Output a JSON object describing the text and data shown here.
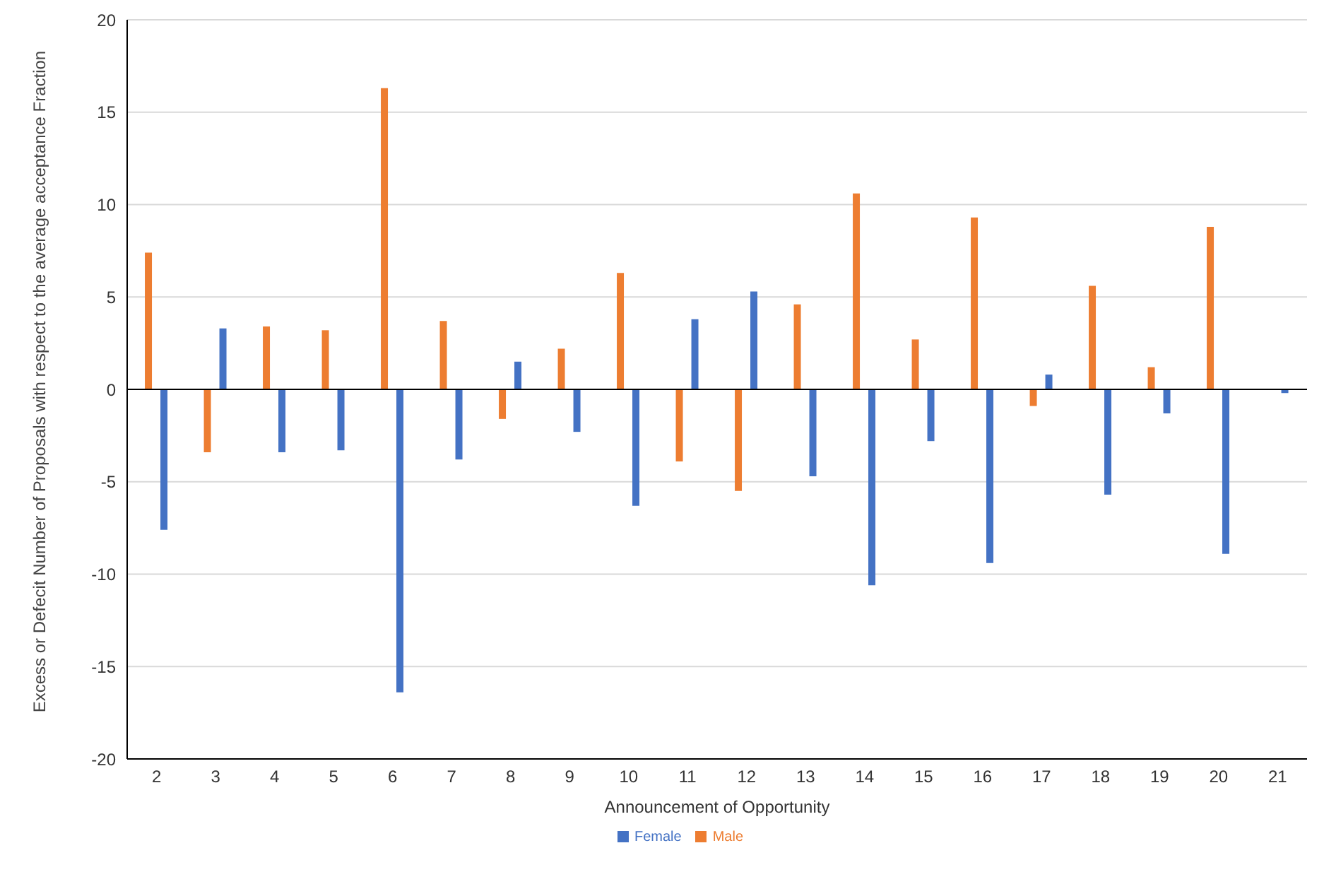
{
  "chart_data": {
    "type": "bar",
    "xlabel": "Announcement of Opportunity",
    "ylabel": "Excess or Defecit Number of Proposals with respect to the average acceptance Fraction",
    "categories": [
      "2",
      "3",
      "4",
      "5",
      "6",
      "7",
      "8",
      "9",
      "10",
      "11",
      "12",
      "13",
      "14",
      "15",
      "16",
      "17",
      "18",
      "19",
      "20",
      "21"
    ],
    "series": [
      {
        "name": "Male",
        "color": "#ed7d31",
        "values": [
          7.4,
          -3.4,
          3.4,
          3.2,
          16.3,
          3.7,
          -1.6,
          2.2,
          6.3,
          -3.9,
          -5.5,
          4.6,
          10.6,
          2.7,
          9.3,
          -0.9,
          5.6,
          1.2,
          8.8,
          0
        ]
      },
      {
        "name": "Female",
        "color": "#4472c4",
        "values": [
          -7.6,
          3.3,
          -3.4,
          -3.3,
          -16.4,
          -3.8,
          1.5,
          -2.3,
          -6.3,
          3.8,
          5.3,
          -4.7,
          -10.6,
          -2.8,
          -9.4,
          0.8,
          -5.7,
          -1.3,
          -8.9,
          -0.2
        ]
      }
    ],
    "ylim": [
      -20,
      20
    ],
    "yticks": [
      -20,
      -15,
      -10,
      -5,
      0,
      5,
      10,
      15,
      20
    ],
    "grid": "y",
    "legend": "bottom"
  }
}
